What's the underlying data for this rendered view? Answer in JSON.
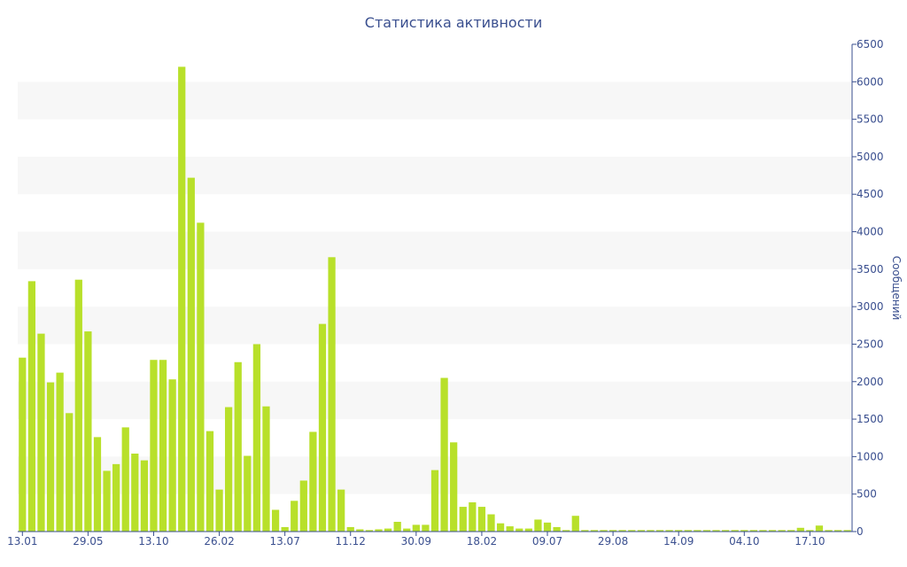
{
  "chart_data": {
    "type": "bar",
    "title": "Статистика активности",
    "ylabel": "Сообщений",
    "y_axis_position": "right",
    "ylim": [
      0,
      6500
    ],
    "y_ticks": [
      "0",
      "500",
      "1000",
      "1500",
      "2000",
      "2500",
      "3000",
      "3500",
      "4000",
      "4500",
      "5000",
      "5500",
      "6000",
      "6500"
    ],
    "x_tick_labels": [
      "13.01",
      "29.05",
      "13.10",
      "26.02",
      "13.07",
      "11.12",
      "30.09",
      "18.02",
      "09.07",
      "29.08",
      "14.09",
      "04.10",
      "17.10"
    ],
    "bar_color": "#b8e02a",
    "band_color": "#f7f7f7",
    "text_color": "#3a4f8f",
    "values": [
      2320,
      3340,
      2640,
      1990,
      2120,
      1580,
      3360,
      2670,
      1260,
      810,
      900,
      1390,
      1040,
      950,
      2290,
      2290,
      2030,
      6200,
      4720,
      4120,
      1340,
      560,
      1660,
      2260,
      1010,
      2500,
      1670,
      290,
      60,
      410,
      680,
      1330,
      2770,
      3660,
      560,
      60,
      30,
      20,
      30,
      40,
      130,
      40,
      90,
      90,
      820,
      2050,
      1190,
      330,
      390,
      330,
      230,
      110,
      70,
      40,
      40,
      160,
      120,
      60,
      20,
      210,
      20,
      20,
      20,
      20,
      20,
      20,
      20,
      20,
      20,
      20,
      20,
      20,
      20,
      20,
      20,
      20,
      20,
      20,
      20,
      20,
      20,
      20,
      20,
      50,
      20,
      80,
      20,
      20,
      20
    ]
  }
}
